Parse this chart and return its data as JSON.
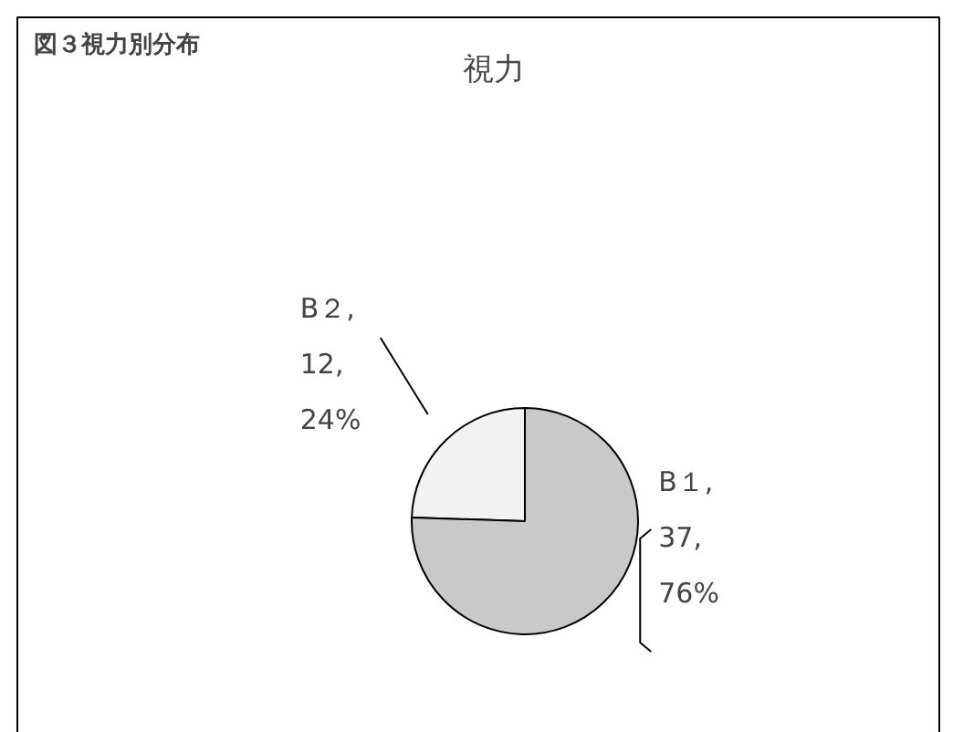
{
  "chart_data": {
    "type": "pie",
    "title": "視力",
    "annotations": [
      "図３視力別分布"
    ],
    "categories": [
      "B２",
      "B１"
    ],
    "values": [
      12,
      37
    ],
    "colors": [
      "#f2f2f2",
      "#c9c9c9"
    ],
    "value_labels": [
      ",\n12,\n24%",
      ",\n37,\n76%"
    ]
  }
}
